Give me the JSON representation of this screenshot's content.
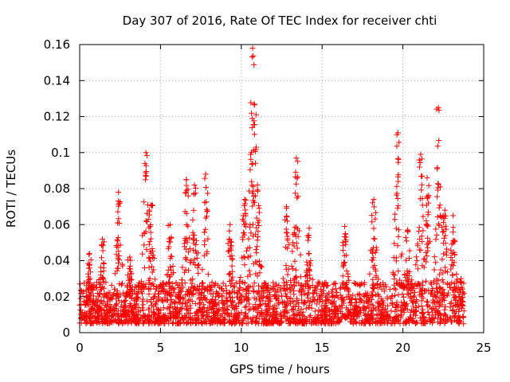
{
  "chart_data": {
    "type": "scatter",
    "title": "Day 307 of 2016, Rate Of TEC Index for receiver chti",
    "xlabel": "GPS time / hours",
    "ylabel": "ROTI / TECUs",
    "xlim": [
      0,
      25
    ],
    "ylim": [
      0,
      0.16
    ],
    "xticks": [
      0,
      5,
      10,
      15,
      20,
      25
    ],
    "yticks": [
      0,
      0.02,
      0.04,
      0.06,
      0.08,
      0.1,
      0.12,
      0.14,
      0.16
    ],
    "xtick_labels": [
      "0",
      "5",
      "10",
      "15",
      "20",
      "25"
    ],
    "ytick_labels": [
      "0",
      "0.02",
      "0.04",
      "0.06",
      "0.08",
      "0.1",
      "0.12",
      "0.14",
      "0.16"
    ],
    "grid": true,
    "marker": "+",
    "color": "#ff0000",
    "x_range_observed": [
      0,
      23.8
    ],
    "baseline_range": [
      0.005,
      0.02
    ],
    "peaks": [
      {
        "x": 0.6,
        "y": 0.044
      },
      {
        "x": 1.4,
        "y": 0.052
      },
      {
        "x": 2.4,
        "y": 0.078
      },
      {
        "x": 3.1,
        "y": 0.042
      },
      {
        "x": 4.1,
        "y": 0.1
      },
      {
        "x": 4.4,
        "y": 0.071
      },
      {
        "x": 5.6,
        "y": 0.06
      },
      {
        "x": 6.6,
        "y": 0.085
      },
      {
        "x": 7.1,
        "y": 0.082
      },
      {
        "x": 7.8,
        "y": 0.088
      },
      {
        "x": 9.3,
        "y": 0.06
      },
      {
        "x": 10.2,
        "y": 0.074
      },
      {
        "x": 10.7,
        "y": 0.158
      },
      {
        "x": 10.8,
        "y": 0.127
      },
      {
        "x": 11.0,
        "y": 0.082
      },
      {
        "x": 12.8,
        "y": 0.07
      },
      {
        "x": 13.4,
        "y": 0.097
      },
      {
        "x": 14.2,
        "y": 0.058
      },
      {
        "x": 16.4,
        "y": 0.059
      },
      {
        "x": 18.2,
        "y": 0.074
      },
      {
        "x": 19.7,
        "y": 0.111
      },
      {
        "x": 20.3,
        "y": 0.057
      },
      {
        "x": 21.1,
        "y": 0.099
      },
      {
        "x": 21.5,
        "y": 0.086
      },
      {
        "x": 22.2,
        "y": 0.125
      },
      {
        "x": 22.6,
        "y": 0.068
      },
      {
        "x": 23.1,
        "y": 0.065
      },
      {
        "x": 23.6,
        "y": 0.03
      }
    ]
  }
}
